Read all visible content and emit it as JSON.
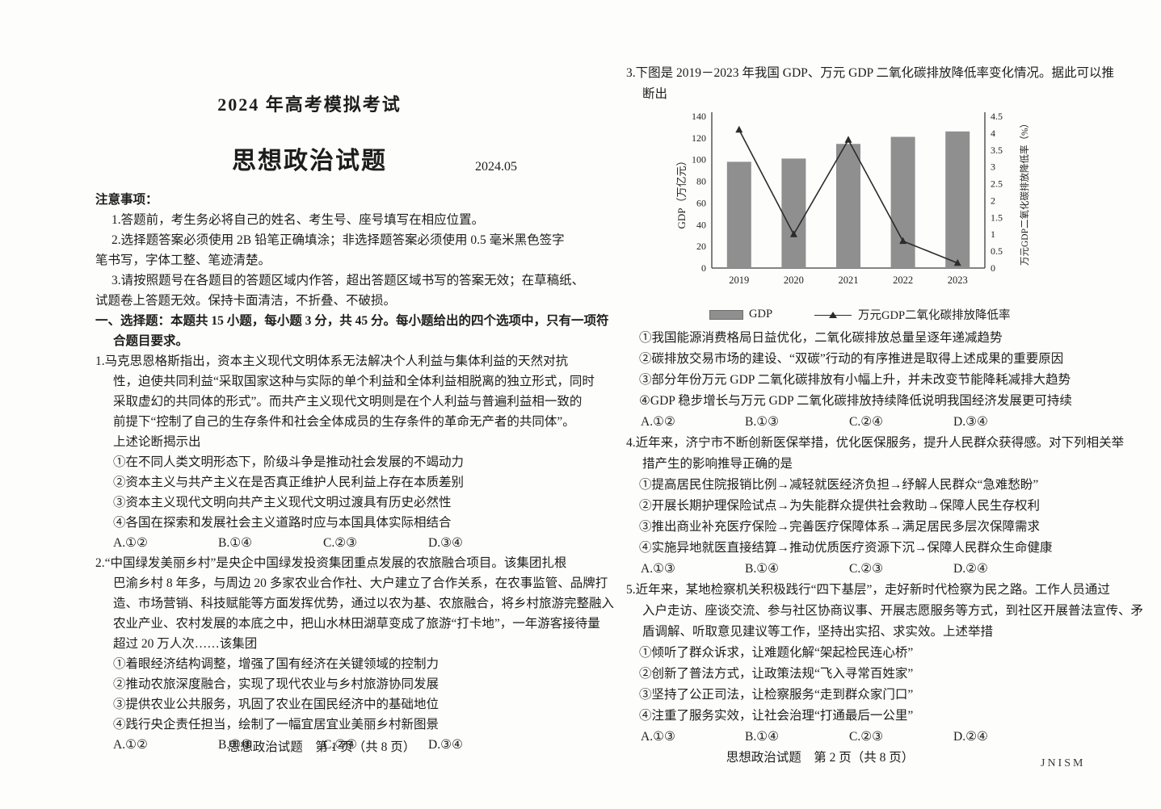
{
  "page1": {
    "exam_title": "2024 年高考模拟考试",
    "subject_title": "思想政治试题",
    "date": "2024.05",
    "notice": {
      "heading": "注意事项：",
      "lines": [
        "1.答题前，考生务必将自己的姓名、考生号、座号填写在相应位置。",
        "2.选择题答案必须使用 2B 铅笔正确填涂；非选择题答案必须使用 0.5 毫米黑色签字",
        "笔书写，字体工整、笔迹清楚。",
        "3.请按照题号在各题目的答题区域内作答，超出答题区域书写的答案无效；在草稿纸、",
        "试题卷上答题无效。保持卡面清洁，不折叠、不破损。"
      ]
    },
    "section": {
      "lines": [
        "一、选择题：本题共 15 小题，每小题 3 分，共 45 分。每小题给出的四个选项中，只有一项符",
        "合题目要求。"
      ]
    },
    "q1": {
      "lines": [
        "1.马克思恩格斯指出，资本主义现代文明体系无法解决个人利益与集体利益的天然对抗",
        "性，迫使共同利益“采取国家这种与实际的单个利益和全体利益相脱离的独立形式，同时",
        "采取虚幻的共同体的形式”。而共产主义现代文明则是在个人利益与普遍利益相一致的",
        "前提下“控制了自己的生存条件和社会全体成员的生存条件的革命无产者的共同体”。",
        "上述论断揭示出"
      ],
      "statements": [
        "①在不同人类文明形态下，阶级斗争是推动社会发展的不竭动力",
        "②资本主义与共产主义在是否真正维护人民利益上存在本质差别",
        "③资本主义现代文明向共产主义现代文明过渡具有历史必然性",
        "④各国在探索和发展社会主义道路时应与本国具体实际相结合"
      ],
      "options": [
        "A.①②",
        "B.①④",
        "C.②③",
        "D.③④"
      ]
    },
    "q2": {
      "lines": [
        "2.“中国绿发美丽乡村”是央企中国绿发投资集团重点发展的农旅融合项目。该集团扎根",
        "巴渝乡村 8 年多，与周边 20 多家农业合作社、大户建立了合作关系，在农事监管、品牌打",
        "造、市场营销、科技赋能等方面发挥优势，通过以农为基、农旅融合，将乡村旅游完整融入",
        "农业产业、农村发展的本底之中，把山水林田湖草变成了旅游“打卡地”，一年游客接待量",
        "超过 20 万人次……该集团"
      ],
      "statements": [
        "①着眼经济结构调整，增强了国有经济在关键领域的控制力",
        "②推动农旅深度融合，实现了现代农业与乡村旅游协同发展",
        "③提供农业公共服务，巩固了农业在国民经济中的基础地位",
        "④践行央企责任担当，绘制了一幅宜居宜业美丽乡村新图景"
      ],
      "options": [
        "A.①②",
        "B.①③",
        "C.②④",
        "D.③④"
      ]
    },
    "footer": "思想政治试题　第 1 页（共 8 页）"
  },
  "page2": {
    "q3": {
      "lines": [
        "3.下图是 2019－2023 年我国 GDP、万元 GDP 二氧化碳排放降低率变化情况。据此可以推",
        "断出"
      ],
      "statements": [
        "①我国能源消费格局日益优化，二氧化碳排放总量呈逐年递减趋势",
        "②碳排放交易市场的建设、“双碳”行动的有序推进是取得上述成果的重要原因",
        "③部分年份万元 GDP 二氧化碳排放有小幅上升，并未改变节能降耗减排大趋势",
        "④GDP 稳步增长与万元 GDP 二氧化碳排放持续降低说明我国经济发展更可持续"
      ],
      "options": [
        "A.①②",
        "B.①③",
        "C.②④",
        "D.③④"
      ]
    },
    "q4": {
      "lines": [
        "4.近年来，济宁市不断创新医保举措，优化医保服务，提升人民群众获得感。对下列相关举",
        "措产生的影响推导正确的是"
      ],
      "statements": [
        "①提高居民住院报销比例→减轻就医经济负担→纾解人民群众“急难愁盼”",
        "②开展长期护理保险试点→为失能群众提供社会救助→保障人民生存权利",
        "③推出商业补充医疗保险→完善医疗保障体系→满足居民多层次保障需求",
        "④实施异地就医直接结算→推动优质医疗资源下沉→保障人民群众生命健康"
      ],
      "options": [
        "A.①③",
        "B.①④",
        "C.②③",
        "D.②④"
      ]
    },
    "q5": {
      "lines": [
        "5.近年来，某地检察机关积极践行“四下基层”，走好新时代检察为民之路。工作人员通过",
        "入户走访、座谈交流、参与社区协商议事、开展志愿服务等方式，到社区开展普法宣传、矛",
        "盾调解、听取意见建议等工作，坚持出实招、求实效。上述举措"
      ],
      "statements": [
        "①倾听了群众诉求，让难题化解“架起检民连心桥”",
        "②创新了普法方式，让政策法规“飞入寻常百姓家”",
        "③坚持了公正司法，让检察服务“走到群众家门口”",
        "④注重了服务实效，让社会治理“打通最后一公里”"
      ],
      "options": [
        "A.①③",
        "B.①④",
        "C.②③",
        "D.②④"
      ]
    },
    "footer": "思想政治试题　第 2 页（共 8 页）",
    "watermark": "JNISM"
  },
  "chart_data": {
    "type": "combo-bar-line",
    "categories": [
      "2019",
      "2020",
      "2021",
      "2022",
      "2023"
    ],
    "series": [
      {
        "name": "GDP",
        "type": "bar",
        "axis": "left",
        "values": [
          98,
          101,
          114.5,
          121,
          126
        ]
      },
      {
        "name": "万元GDP二氧化碳排放降低率",
        "type": "line",
        "axis": "right",
        "values": [
          4.1,
          1.0,
          3.8,
          0.8,
          0.15
        ]
      }
    ],
    "ylabel_left": "GDP（万亿元）",
    "ylabel_right": "万元GDP二氧化碳排放降低率（%）",
    "ylim_left": [
      0,
      140
    ],
    "ytick_step_left": 20,
    "ylim_right": [
      0,
      4.5
    ],
    "ytick_step_right": 0.5,
    "legend_position": "bottom",
    "grid": "off",
    "bar_color": "#8f8f8f",
    "line_color": "#2b2b2b"
  }
}
